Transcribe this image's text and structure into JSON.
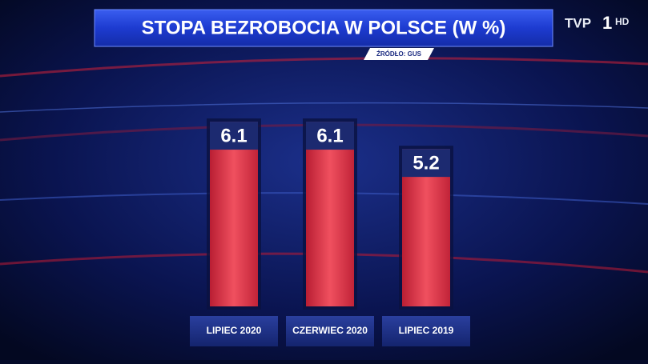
{
  "chart_data": {
    "type": "bar",
    "title": "STOPA BEZROBOCIA W POLSCE (W %)",
    "source": "ŹRÓDŁO: GUS",
    "categories": [
      "LIPIEC 2020",
      "CZERWIEC 2020",
      "LIPIEC 2019"
    ],
    "values": [
      6.1,
      6.1,
      5.2
    ],
    "color": "#e03a4c",
    "ylim": [
      0,
      7
    ]
  },
  "logo": {
    "name": "TVP",
    "channel": "1",
    "quality": "HD"
  }
}
